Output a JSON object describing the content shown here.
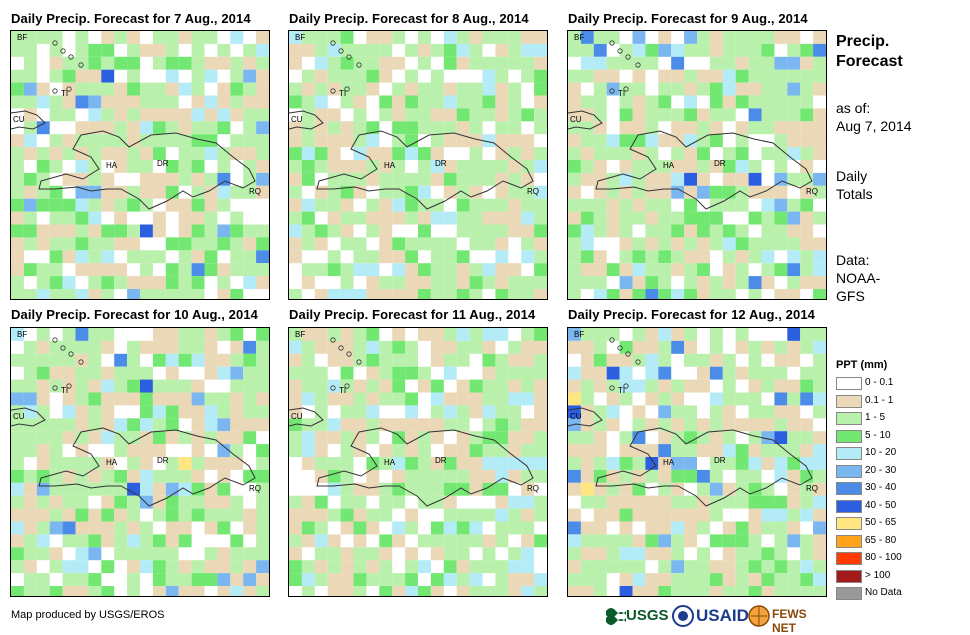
{
  "panels": [
    {
      "title": "Daily Precip. Forecast for 7 Aug., 2014",
      "seed": 7,
      "bias": 0.55,
      "wet": 0.35
    },
    {
      "title": "Daily Precip. Forecast for 8 Aug., 2014",
      "seed": 8,
      "bias": 0.35,
      "wet": 0.12
    },
    {
      "title": "Daily Precip. Forecast for 9 Aug., 2014",
      "seed": 9,
      "bias": 0.65,
      "wet": 0.55
    },
    {
      "title": "Daily Precip. Forecast for 10 Aug., 2014",
      "seed": 10,
      "bias": 0.5,
      "wet": 0.32
    },
    {
      "title": "Daily Precip. Forecast for 11 Aug., 2014",
      "seed": 11,
      "bias": 0.45,
      "wet": 0.15
    },
    {
      "title": "Daily Precip. Forecast for 12 Aug., 2014",
      "seed": 12,
      "bias": 0.7,
      "wet": 0.45
    }
  ],
  "map_labels": {
    "bf": "BF",
    "ti": "TI",
    "cu": "CU",
    "ha": "HA",
    "dr": "DR",
    "rq": "RQ"
  },
  "side_info": {
    "title_line1": "Precip.",
    "title_line2": "Forecast",
    "asof_label": "as of:",
    "asof_date": "Aug 7, 2014",
    "totals_line1": "Daily",
    "totals_line2": "Totals",
    "data_label": "Data:",
    "data_line1": "NOAA-",
    "data_line2": "GFS"
  },
  "legend": {
    "title": "PPT (mm)",
    "items": [
      {
        "label": "0 - 0.1",
        "color": "#ffffff"
      },
      {
        "label": "0.1 - 1",
        "color": "#ead8b7"
      },
      {
        "label": "1 - 5",
        "color": "#b8f0ac"
      },
      {
        "label": "5 - 10",
        "color": "#72e872"
      },
      {
        "label": "10 - 20",
        "color": "#b3ebf7"
      },
      {
        "label": "20 - 30",
        "color": "#7ab7f0"
      },
      {
        "label": "30 - 40",
        "color": "#4a8ce8"
      },
      {
        "label": "40 - 50",
        "color": "#2b5fe0"
      },
      {
        "label": "50 - 65",
        "color": "#ffe680"
      },
      {
        "label": "65 - 80",
        "color": "#ffa31a"
      },
      {
        "label": "80 - 100",
        "color": "#ff3b00"
      },
      {
        "label": "> 100",
        "color": "#a31a1a"
      },
      {
        "label": "No Data",
        "color": "#999999"
      }
    ]
  },
  "footer": {
    "credit": "Map produced by USGS/EROS"
  },
  "logos": {
    "usgs": "USGS",
    "usaid": "USAID",
    "fewsnet": "FEWS NET"
  }
}
